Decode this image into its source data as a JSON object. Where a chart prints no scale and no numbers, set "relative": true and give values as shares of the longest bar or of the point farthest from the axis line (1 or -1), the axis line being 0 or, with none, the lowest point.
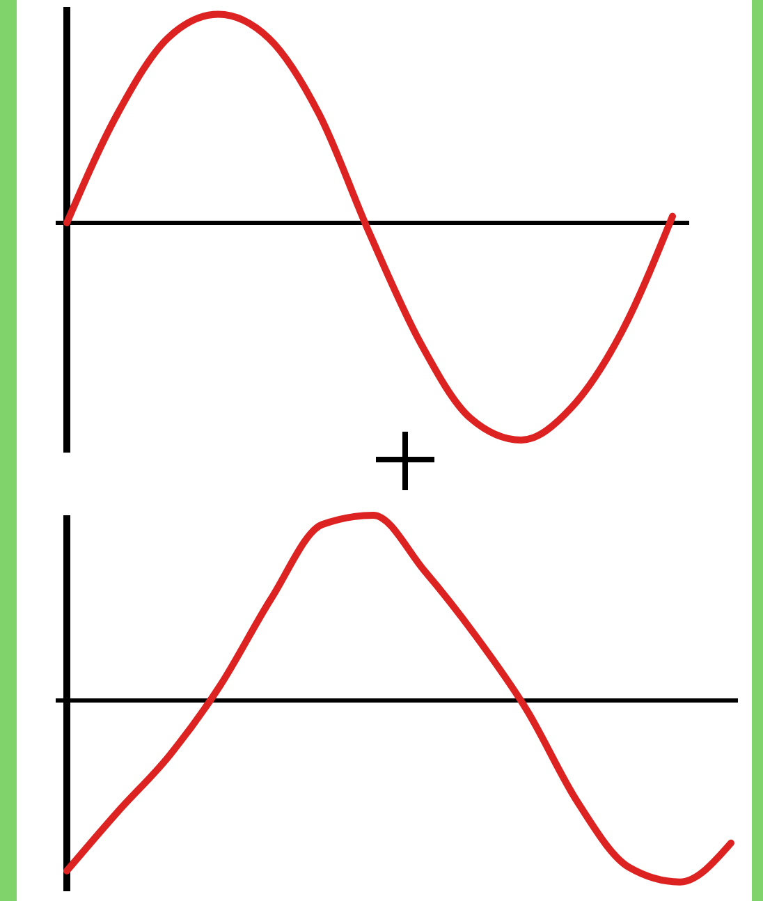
{
  "chart_data": [
    {
      "type": "line",
      "relative": true,
      "categories": [
        null,
        null,
        null,
        null,
        null,
        null,
        null,
        null,
        null,
        null,
        null,
        null,
        null
      ],
      "series": [
        {
          "color": "#dd2222",
          "values": [
            0,
            0.5,
            0.85,
            0.96,
            0.85,
            0.5,
            -0.05,
            -0.55,
            -0.9,
            -1,
            -0.85,
            -0.5,
            0.03
          ]
        }
      ]
    },
    {
      "type": "line",
      "relative": true,
      "categories": [
        null,
        null,
        null,
        null,
        null,
        null,
        null,
        null,
        null,
        null,
        null,
        null,
        null,
        null
      ],
      "series": [
        {
          "color": "#dd2222",
          "values": [
            -0.92,
            -0.6,
            -0.3,
            0.08,
            0.55,
            0.95,
            1,
            0.7,
            0.35,
            -0.05,
            -0.55,
            -0.9,
            -0.98,
            -0.77
          ]
        }
      ]
    }
  ]
}
